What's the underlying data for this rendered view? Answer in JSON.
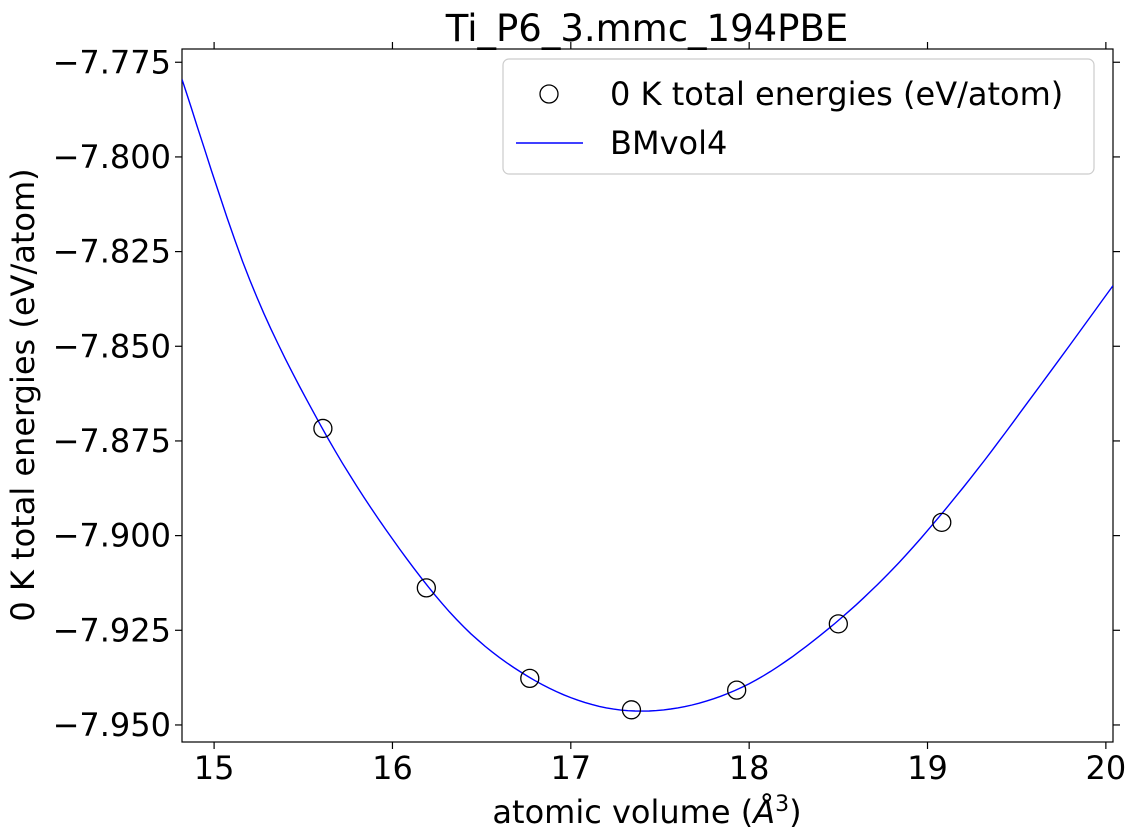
{
  "chart_data": {
    "type": "scatter",
    "title": "Ti_P6_3.mmc_194PBE",
    "xlabel": "atomic volume (Å$^3$)",
    "xlabel_main": "atomic volume (",
    "xlabel_unit": "Å",
    "xlabel_sup": "3",
    "xlabel_close": ")",
    "ylabel": "0 K total energies (eV/atom)",
    "xlim": [
      14.82,
      20.04
    ],
    "ylim": [
      -7.9545,
      -7.7715
    ],
    "xticks": [
      15,
      16,
      17,
      18,
      19,
      20
    ],
    "yticks": [
      -7.775,
      -7.8,
      -7.825,
      -7.85,
      -7.875,
      -7.9,
      -7.925,
      -7.95
    ],
    "xtick_labels": [
      "15",
      "16",
      "17",
      "18",
      "19",
      "20"
    ],
    "ytick_labels": [
      "−7.775",
      "−7.800",
      "−7.825",
      "−7.850",
      "−7.875",
      "−7.900",
      "−7.925",
      "−7.950"
    ],
    "grid": false,
    "legend_position": "top-right",
    "series": [
      {
        "name": "0 K total energies (eV/atom)",
        "kind": "markers",
        "marker": "open-circle",
        "color": "#000000",
        "x": [
          15.61,
          16.19,
          16.77,
          17.34,
          17.93,
          18.5,
          19.08
        ],
        "y": [
          -7.8717,
          -7.9138,
          -7.9377,
          -7.946,
          -7.9408,
          -7.9233,
          -7.8965
        ]
      },
      {
        "name": "BMvol4",
        "kind": "line",
        "color": "#0000ff",
        "x": [
          14.82,
          15.2,
          15.6,
          16.0,
          16.4,
          16.8,
          17.2,
          17.6,
          18.0,
          18.4,
          18.8,
          19.2,
          19.6,
          20.04
        ],
        "y": [
          -7.7795,
          -7.8325,
          -7.8711,
          -7.9009,
          -7.9241,
          -7.9383,
          -7.9455,
          -7.9455,
          -7.9391,
          -7.9263,
          -7.9091,
          -7.8873,
          -7.8624,
          -7.834
        ]
      }
    ]
  }
}
